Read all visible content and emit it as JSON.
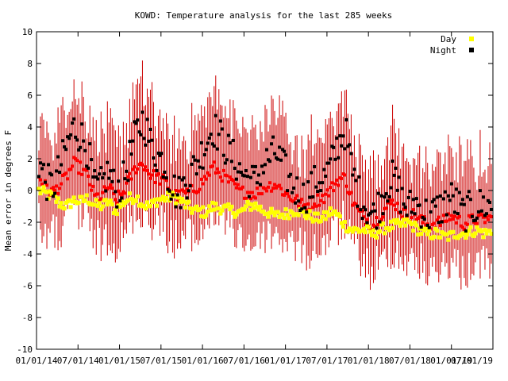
{
  "chart_data": {
    "type": "scatter",
    "title": "KOWD: Temperature analysis for the last 285 weeks",
    "xlabel": "",
    "ylabel": "Mean error in degrees F",
    "ylim": [
      -10,
      10
    ],
    "yticks": [
      "10",
      "8",
      "6",
      "4",
      "2",
      "0",
      "-2",
      "-4",
      "-6",
      "-8",
      "-10"
    ],
    "xticks": [
      "01/01/14",
      "07/01/14",
      "01/01/15",
      "07/01/15",
      "01/01/16",
      "07/01/16",
      "01/01/17",
      "07/01/17",
      "01/01/18",
      "07/01/18",
      "01/01/19",
      "07/01/19"
    ],
    "weeks": 285,
    "legend_position": "top-right",
    "series": [
      {
        "name": "Day",
        "color": "#ffff00",
        "values_by_month": [
          0.0,
          -0.2,
          -0.4,
          -0.8,
          -1.0,
          -0.6,
          -0.7,
          -0.5,
          -0.9,
          -1.0,
          -0.7,
          -1.3,
          -0.8,
          -0.5,
          -0.4,
          -0.9,
          -1.0,
          -0.6,
          -0.5,
          -0.4,
          -0.5,
          -0.9,
          -1.2,
          -1.3,
          -1.4,
          -1.0,
          -1.1,
          -1.2,
          -1.3,
          -1.4,
          -1.0,
          -0.9,
          -1.2,
          -1.4,
          -1.6,
          -1.5,
          -1.4,
          -1.2,
          -1.5,
          -1.6,
          -1.8,
          -1.7,
          -1.3,
          -1.6,
          -2.2,
          -2.5,
          -2.5,
          -2.5,
          -2.8,
          -2.5,
          -2.3,
          -2.2,
          -2.2,
          -2.0,
          -2.3,
          -2.6,
          -2.8,
          -2.7,
          -2.9,
          -2.9,
          -2.7,
          -2.7,
          -2.6,
          -2.5,
          -2.7,
          -2.6
        ]
      },
      {
        "name": "Night",
        "color": "#000000",
        "values_by_month": [
          1.8,
          0.6,
          0.2,
          1.4,
          2.8,
          4.0,
          3.5,
          2.6,
          0.1,
          0.3,
          1.2,
          0.0,
          0.4,
          2.0,
          3.6,
          4.5,
          3.0,
          2.2,
          1.8,
          0.4,
          -0.3,
          0.5,
          1.2,
          2.0,
          3.0,
          4.0,
          3.4,
          2.6,
          2.0,
          1.2,
          0.8,
          0.5,
          1.4,
          2.0,
          2.4,
          1.6,
          0.6,
          0.0,
          -0.4,
          0.1,
          0.6,
          0.8,
          1.6,
          3.0,
          3.8,
          1.2,
          -0.2,
          -1.0,
          -1.6,
          -0.8,
          0.3,
          0.8,
          -0.4,
          -1.2,
          -0.7,
          -1.2,
          -1.6,
          -1.3,
          -1.0,
          -0.4,
          -0.8,
          -1.5,
          -1.2,
          -1.0,
          -0.9,
          -1.0
        ]
      },
      {
        "name": "",
        "color": "#ff0000",
        "values_by_month": [
          0.9,
          0.2,
          -0.1,
          0.3,
          0.9,
          1.7,
          1.4,
          0.9,
          -0.4,
          -0.4,
          0.3,
          -0.6,
          -0.2,
          0.7,
          1.5,
          1.7,
          1.0,
          0.8,
          0.6,
          0.0,
          -0.4,
          -0.2,
          0.0,
          0.3,
          0.8,
          1.5,
          1.1,
          0.7,
          0.3,
          -0.1,
          -0.1,
          -0.2,
          0.1,
          0.3,
          0.4,
          0.0,
          -0.4,
          -0.6,
          -1.0,
          -0.8,
          -0.6,
          -0.4,
          0.1,
          0.7,
          0.8,
          -0.6,
          -1.4,
          -1.8,
          -2.2,
          -1.6,
          -1.0,
          -0.7,
          -1.3,
          -1.6,
          -1.5,
          -1.9,
          -2.2,
          -2.0,
          -2.0,
          -1.6,
          -1.8,
          -2.1,
          -1.9,
          -1.8,
          -1.8,
          -1.8
        ]
      }
    ],
    "error_bar_color": "#cc0000"
  }
}
